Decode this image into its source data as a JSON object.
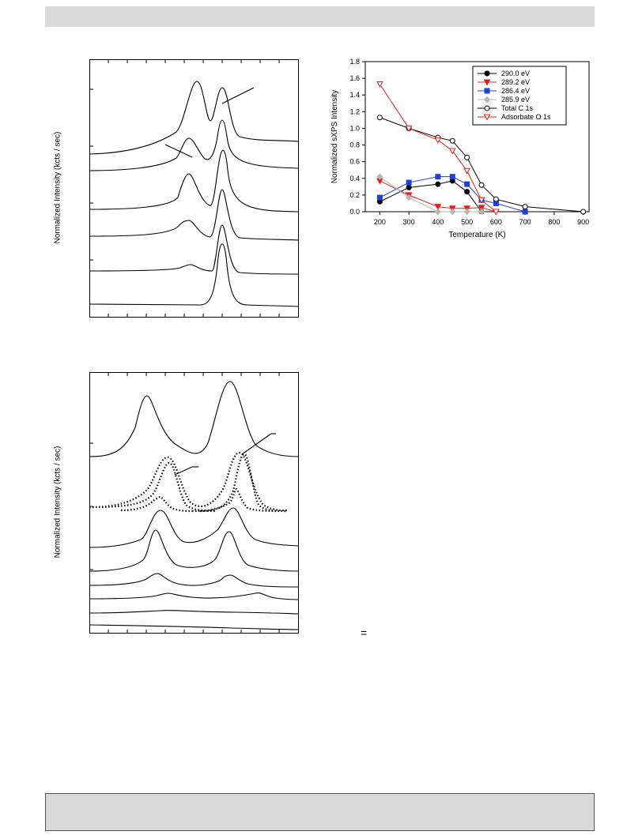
{
  "left_panels": {
    "ylabel": "Normalized Intensity (kcts / sec)"
  },
  "equals_sign": "=",
  "chart_data": {
    "type": "line",
    "xlabel": "Temperature (K)",
    "ylabel": "Normalized sXPS Intensity",
    "xlim": [
      150,
      920
    ],
    "ylim": [
      0,
      1.8
    ],
    "xticks": [
      200,
      300,
      400,
      500,
      600,
      700,
      800,
      900
    ],
    "yticks": [
      0.0,
      0.2,
      0.4,
      0.6,
      0.8,
      1.0,
      1.2,
      1.4,
      1.6,
      1.8
    ],
    "grid": false,
    "legend_position": "top-right",
    "series": [
      {
        "name": "290.0 eV",
        "color": "#000000",
        "marker": "circle-filled",
        "x": [
          200,
          300,
          400,
          450,
          500,
          550
        ],
        "y": [
          0.12,
          0.29,
          0.33,
          0.37,
          0.24,
          0.0
        ]
      },
      {
        "name": "289.2 eV",
        "color": "#e0201b",
        "marker": "triangle-down-filled",
        "x": [
          200,
          300,
          400,
          450,
          500,
          550,
          600
        ],
        "y": [
          0.37,
          0.2,
          0.06,
          0.04,
          0.04,
          0.05,
          0.0
        ]
      },
      {
        "name": "286.4 eV",
        "color": "#1f3fd6",
        "marker": "square-filled",
        "x": [
          200,
          300,
          400,
          450,
          500,
          550,
          600,
          700
        ],
        "y": [
          0.17,
          0.35,
          0.42,
          0.42,
          0.33,
          0.14,
          0.1,
          0.0
        ]
      },
      {
        "name": "285.9 eV",
        "color": "#b5b5b5",
        "marker": "diamond-filled",
        "x": [
          200,
          300,
          400,
          450,
          500,
          550
        ],
        "y": [
          0.42,
          0.17,
          0.0,
          0.0,
          0.0,
          0.0
        ]
      },
      {
        "name": "Total C 1s",
        "color": "#000000",
        "marker": "circle-open",
        "x": [
          200,
          300,
          400,
          450,
          500,
          550,
          600,
          700,
          900
        ],
        "y": [
          1.13,
          1.0,
          0.89,
          0.85,
          0.65,
          0.32,
          0.15,
          0.06,
          0.0
        ]
      },
      {
        "name": "Adsorbate O 1s",
        "color": "#e0201b",
        "marker": "triangle-down-open",
        "x": [
          200,
          300,
          400,
          450,
          500,
          550,
          600
        ],
        "y": [
          1.53,
          1.0,
          0.86,
          0.73,
          0.49,
          0.14,
          0.0
        ]
      }
    ]
  }
}
